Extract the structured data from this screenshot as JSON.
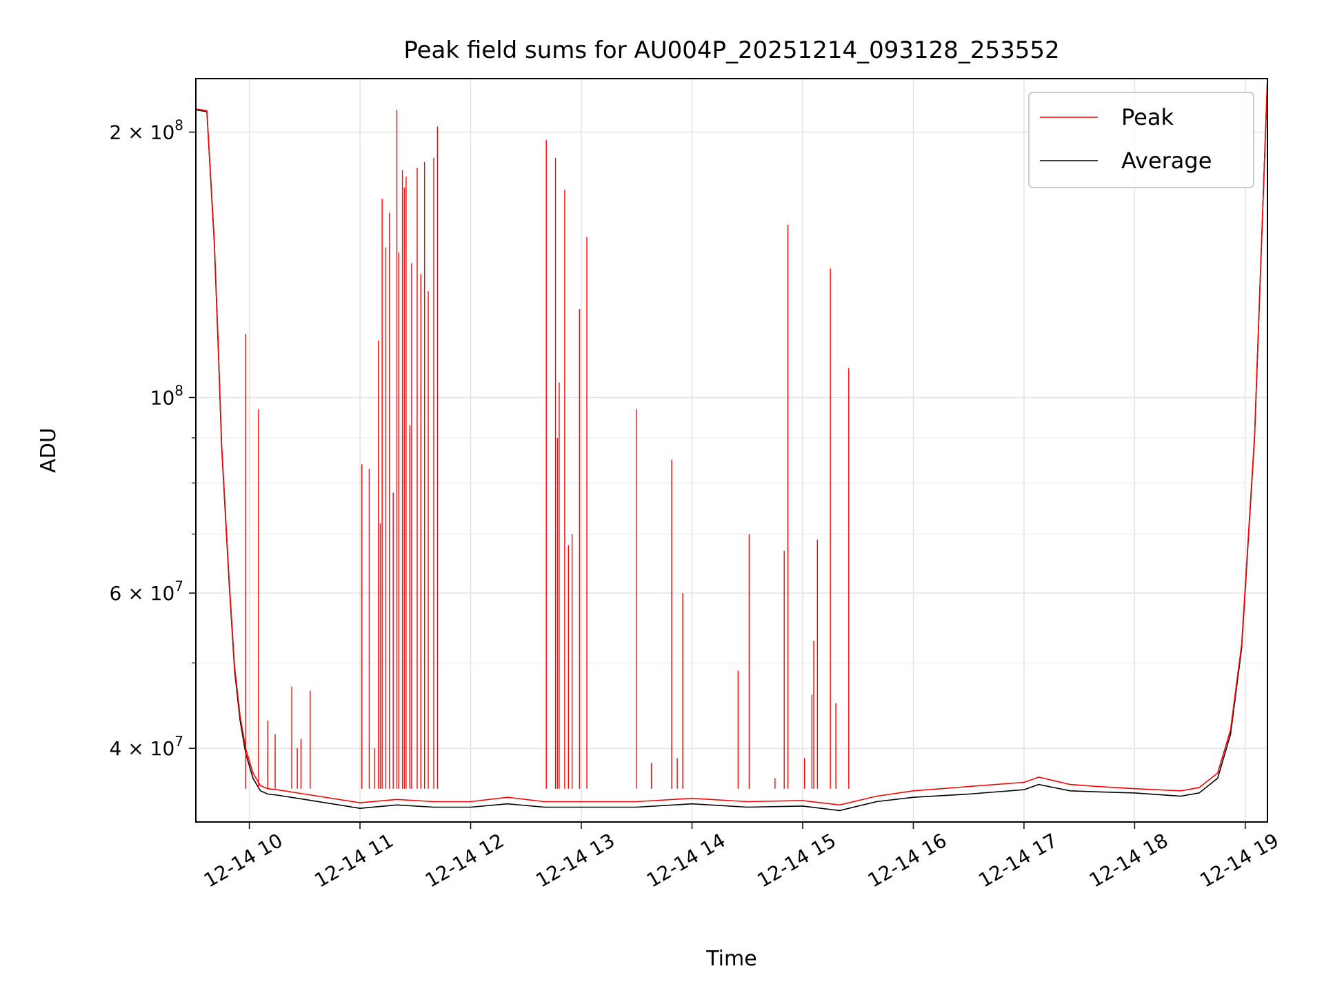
{
  "chart_data": {
    "type": "line",
    "title": "Peak field sums for AU004P_20251214_093128_253552",
    "xlabel": "Time",
    "ylabel": "ADU",
    "yscale": "log",
    "ylim": [
      33000000,
      230000000
    ],
    "xlim": [
      "2025-12-14 09:31",
      "2025-12-14 19:12"
    ],
    "grid": true,
    "legend_placement": "top-right",
    "colors": {
      "Peak": "#ff0000",
      "Average": "#000000"
    },
    "x_tick_labels": [
      "12-14 10",
      "12-14 11",
      "12-14 12",
      "12-14 13",
      "12-14 14",
      "12-14 15",
      "12-14 16",
      "12-14 17",
      "12-14 18",
      "12-14 19"
    ],
    "x_tick_values": [
      "2025-12-14 10:00",
      "2025-12-14 11:00",
      "2025-12-14 12:00",
      "2025-12-14 13:00",
      "2025-12-14 14:00",
      "2025-12-14 15:00",
      "2025-12-14 16:00",
      "2025-12-14 17:00",
      "2025-12-14 18:00",
      "2025-12-14 19:00"
    ],
    "y_ticks": [
      {
        "value": 40000000,
        "mantissa": "4",
        "exponent": "7"
      },
      {
        "value": 60000000,
        "mantissa": "6",
        "exponent": "7"
      },
      {
        "value": 100000000,
        "mantissa": "",
        "exponent": "8"
      },
      {
        "value": 200000000,
        "mantissa": "2",
        "exponent": "8"
      }
    ],
    "y_minor_ticks": [
      50000000,
      70000000,
      80000000,
      90000000
    ],
    "series": [
      {
        "name": "Average",
        "x": [
          "2025-12-14 09:31",
          "2025-12-14 09:37",
          "2025-12-14 09:41",
          "2025-12-14 09:43",
          "2025-12-14 09:45",
          "2025-12-14 09:49",
          "2025-12-14 09:52",
          "2025-12-14 09:55",
          "2025-12-14 09:58",
          "2025-12-14 10:02",
          "2025-12-14 10:06",
          "2025-12-14 10:10",
          "2025-12-14 10:15",
          "2025-12-14 10:30",
          "2025-12-14 11:00",
          "2025-12-14 11:20",
          "2025-12-14 11:40",
          "2025-12-14 12:00",
          "2025-12-14 12:20",
          "2025-12-14 12:40",
          "2025-12-14 13:00",
          "2025-12-14 13:30",
          "2025-12-14 14:00",
          "2025-12-14 14:30",
          "2025-12-14 15:00",
          "2025-12-14 15:20",
          "2025-12-14 15:40",
          "2025-12-14 16:00",
          "2025-12-14 16:30",
          "2025-12-14 17:00",
          "2025-12-14 17:08",
          "2025-12-14 17:25",
          "2025-12-14 17:40",
          "2025-12-14 18:00",
          "2025-12-14 18:25",
          "2025-12-14 18:35",
          "2025-12-14 18:45",
          "2025-12-14 18:52",
          "2025-12-14 18:58",
          "2025-12-14 19:05",
          "2025-12-14 19:12"
        ],
        "y": [
          212000000,
          211000000,
          150000000,
          116000000,
          88000000,
          62000000,
          49000000,
          43000000,
          39500000,
          37000000,
          35800000,
          35500000,
          35400000,
          35000000,
          34200000,
          34500000,
          34300000,
          34300000,
          34600000,
          34300000,
          34300000,
          34300000,
          34600000,
          34300000,
          34400000,
          34000000,
          34800000,
          35200000,
          35500000,
          35900000,
          36400000,
          35800000,
          35700000,
          35600000,
          35300000,
          35600000,
          37000000,
          41500000,
          52000000,
          90000000,
          230000000
        ]
      },
      {
        "name": "Peak",
        "x": [
          "2025-12-14 09:31",
          "2025-12-14 09:37",
          "2025-12-14 09:41",
          "2025-12-14 09:43",
          "2025-12-14 09:45",
          "2025-12-14 09:49",
          "2025-12-14 09:52",
          "2025-12-14 09:55",
          "2025-12-14 09:58",
          "2025-12-14 10:02",
          "2025-12-14 10:06",
          "2025-12-14 10:10",
          "2025-12-14 10:15",
          "2025-12-14 10:30",
          "2025-12-14 11:00",
          "2025-12-14 11:20",
          "2025-12-14 11:40",
          "2025-12-14 12:00",
          "2025-12-14 12:20",
          "2025-12-14 12:40",
          "2025-12-14 13:00",
          "2025-12-14 13:30",
          "2025-12-14 14:00",
          "2025-12-14 14:30",
          "2025-12-14 15:00",
          "2025-12-14 15:20",
          "2025-12-14 15:40",
          "2025-12-14 16:00",
          "2025-12-14 16:30",
          "2025-12-14 17:00",
          "2025-12-14 17:08",
          "2025-12-14 17:25",
          "2025-12-14 17:40",
          "2025-12-14 18:00",
          "2025-12-14 18:25",
          "2025-12-14 18:35",
          "2025-12-14 18:45",
          "2025-12-14 18:52",
          "2025-12-14 18:58",
          "2025-12-14 19:05",
          "2025-12-14 19:12"
        ],
        "y": [
          212500000,
          211500000,
          151000000,
          117000000,
          88500000,
          62500000,
          49500000,
          43500000,
          40000000,
          37500000,
          36300000,
          36000000,
          35900000,
          35500000,
          34700000,
          35000000,
          34800000,
          34800000,
          35200000,
          34800000,
          34800000,
          34800000,
          35100000,
          34800000,
          34900000,
          34500000,
          35300000,
          35800000,
          36200000,
          36600000,
          37100000,
          36400000,
          36200000,
          36000000,
          35800000,
          36100000,
          37500000,
          42000000,
          52500000,
          90500000,
          230000000
        ],
        "spikes": [
          {
            "x": "2025-12-14 09:58",
            "y": 118000000
          },
          {
            "x": "2025-12-14 10:05",
            "y": 97000000
          },
          {
            "x": "2025-12-14 10:10",
            "y": 43000000
          },
          {
            "x": "2025-12-14 10:14",
            "y": 41500000
          },
          {
            "x": "2025-12-14 10:23",
            "y": 47000000
          },
          {
            "x": "2025-12-14 10:26",
            "y": 40000000
          },
          {
            "x": "2025-12-14 10:28",
            "y": 41000000
          },
          {
            "x": "2025-12-14 10:33",
            "y": 46500000
          },
          {
            "x": "2025-12-14 11:01",
            "y": 84000000
          },
          {
            "x": "2025-12-14 11:05",
            "y": 83000000
          },
          {
            "x": "2025-12-14 11:08",
            "y": 40000000
          },
          {
            "x": "2025-12-14 11:10",
            "y": 116000000
          },
          {
            "x": "2025-12-14 11:11",
            "y": 72000000
          },
          {
            "x": "2025-12-14 11:12",
            "y": 168000000
          },
          {
            "x": "2025-12-14 11:14",
            "y": 148000000
          },
          {
            "x": "2025-12-14 11:16",
            "y": 162000000
          },
          {
            "x": "2025-12-14 11:18",
            "y": 78000000
          },
          {
            "x": "2025-12-14 11:20",
            "y": 212000000
          },
          {
            "x": "2025-12-14 11:21",
            "y": 146000000
          },
          {
            "x": "2025-12-14 11:23",
            "y": 181000000
          },
          {
            "x": "2025-12-14 11:24",
            "y": 173000000
          },
          {
            "x": "2025-12-14 11:25",
            "y": 178000000
          },
          {
            "x": "2025-12-14 11:27",
            "y": 93000000
          },
          {
            "x": "2025-12-14 11:28",
            "y": 142000000
          },
          {
            "x": "2025-12-14 11:31",
            "y": 182000000
          },
          {
            "x": "2025-12-14 11:33",
            "y": 138000000
          },
          {
            "x": "2025-12-14 11:35",
            "y": 185000000
          },
          {
            "x": "2025-12-14 11:37",
            "y": 132000000
          },
          {
            "x": "2025-12-14 11:40",
            "y": 187000000
          },
          {
            "x": "2025-12-14 11:42",
            "y": 203000000
          },
          {
            "x": "2025-12-14 12:41",
            "y": 196000000
          },
          {
            "x": "2025-12-14 12:46",
            "y": 187000000
          },
          {
            "x": "2025-12-14 12:47",
            "y": 90000000
          },
          {
            "x": "2025-12-14 12:48",
            "y": 104000000
          },
          {
            "x": "2025-12-14 12:51",
            "y": 172000000
          },
          {
            "x": "2025-12-14 12:53",
            "y": 68000000
          },
          {
            "x": "2025-12-14 12:55",
            "y": 70000000
          },
          {
            "x": "2025-12-14 12:59",
            "y": 126000000
          },
          {
            "x": "2025-12-14 13:03",
            "y": 152000000
          },
          {
            "x": "2025-12-14 13:30",
            "y": 97000000
          },
          {
            "x": "2025-12-14 13:38",
            "y": 38500000
          },
          {
            "x": "2025-12-14 13:49",
            "y": 85000000
          },
          {
            "x": "2025-12-14 13:52",
            "y": 39000000
          },
          {
            "x": "2025-12-14 13:55",
            "y": 60000000
          },
          {
            "x": "2025-12-14 14:25",
            "y": 49000000
          },
          {
            "x": "2025-12-14 14:31",
            "y": 70000000
          },
          {
            "x": "2025-12-14 14:45",
            "y": 37000000
          },
          {
            "x": "2025-12-14 14:50",
            "y": 67000000
          },
          {
            "x": "2025-12-14 14:52",
            "y": 157000000
          },
          {
            "x": "2025-12-14 15:01",
            "y": 39000000
          },
          {
            "x": "2025-12-14 15:05",
            "y": 46000000
          },
          {
            "x": "2025-12-14 15:06",
            "y": 53000000
          },
          {
            "x": "2025-12-14 15:08",
            "y": 69000000
          },
          {
            "x": "2025-12-14 15:15",
            "y": 140000000
          },
          {
            "x": "2025-12-14 15:18",
            "y": 45000000
          },
          {
            "x": "2025-12-14 15:25",
            "y": 108000000
          }
        ]
      }
    ]
  }
}
